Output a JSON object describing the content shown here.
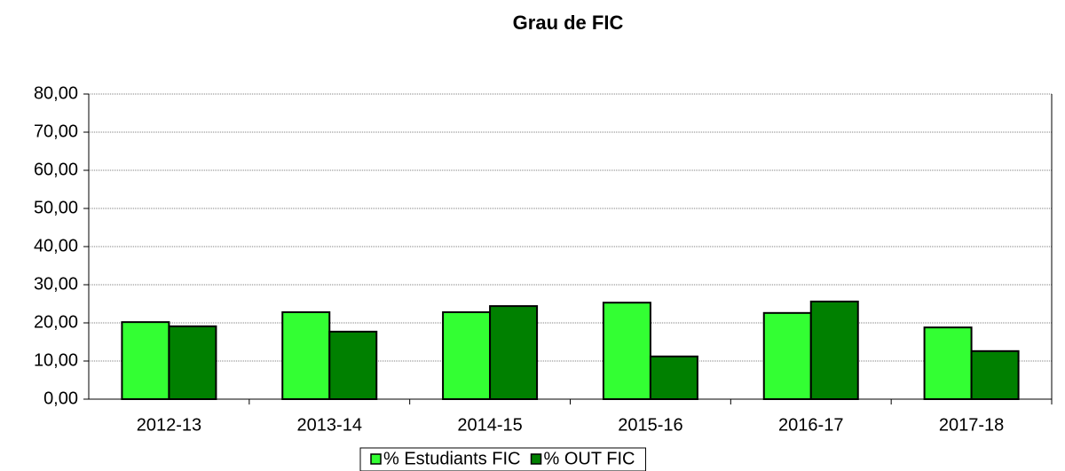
{
  "chart_data": {
    "type": "bar",
    "title": "Grau de FIC",
    "categories": [
      "2012-13",
      "2013-14",
      "2014-15",
      "2015-16",
      "2016-17",
      "2017-18"
    ],
    "series": [
      {
        "name": "% Estudiants FIC",
        "color": "#33ff33",
        "values": [
          20.2,
          22.8,
          22.8,
          25.3,
          22.6,
          18.8
        ]
      },
      {
        "name": "% OUT FIC",
        "color": "#008000",
        "values": [
          19.1,
          17.7,
          24.4,
          11.2,
          25.6,
          12.6
        ]
      }
    ],
    "ylim": [
      0,
      80
    ],
    "yticks": [
      {
        "value": 0,
        "label": "0,00"
      },
      {
        "value": 10,
        "label": "10,00"
      },
      {
        "value": 20,
        "label": "20,00"
      },
      {
        "value": 30,
        "label": "30,00"
      },
      {
        "value": 40,
        "label": "40,00"
      },
      {
        "value": 50,
        "label": "50,00"
      },
      {
        "value": 60,
        "label": "60,00"
      },
      {
        "value": 70,
        "label": "70,00"
      },
      {
        "value": 80,
        "label": "80,00"
      }
    ],
    "grid": true,
    "legend": "bottom"
  }
}
